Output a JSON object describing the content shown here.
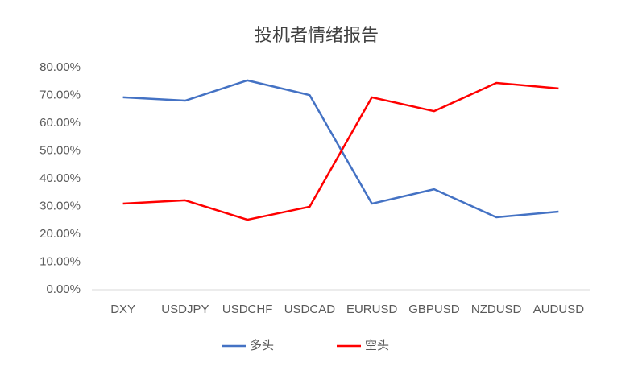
{
  "chart_data": {
    "type": "line",
    "title": "投机者情绪报告",
    "categories": [
      "DXY",
      "USDJPY",
      "USDCHF",
      "USDCAD",
      "EURUSD",
      "GBPUSD",
      "NZDUSD",
      "AUDUSD"
    ],
    "series": [
      {
        "name": "多头",
        "color": "#4472c4",
        "values": [
          69.3,
          68.1,
          75.4,
          70.1,
          31,
          36.2,
          26.1,
          28.1
        ]
      },
      {
        "name": "空头",
        "color": "#ff0000",
        "values": [
          31,
          32.2,
          25.2,
          29.9,
          69.3,
          64.3,
          74.5,
          72.5
        ]
      }
    ],
    "ylim": [
      0,
      80
    ],
    "yticks": [
      {
        "value": 0,
        "label": "0.00%"
      },
      {
        "value": 10,
        "label": "10.00%"
      },
      {
        "value": 20,
        "label": "20.00%"
      },
      {
        "value": 30,
        "label": "30.00%"
      },
      {
        "value": 40,
        "label": "40.00%"
      },
      {
        "value": 50,
        "label": "50.00%"
      },
      {
        "value": 60,
        "label": "60.00%"
      },
      {
        "value": 70,
        "label": "70.00%"
      },
      {
        "value": 80,
        "label": "80.00%"
      }
    ],
    "grid": false
  }
}
